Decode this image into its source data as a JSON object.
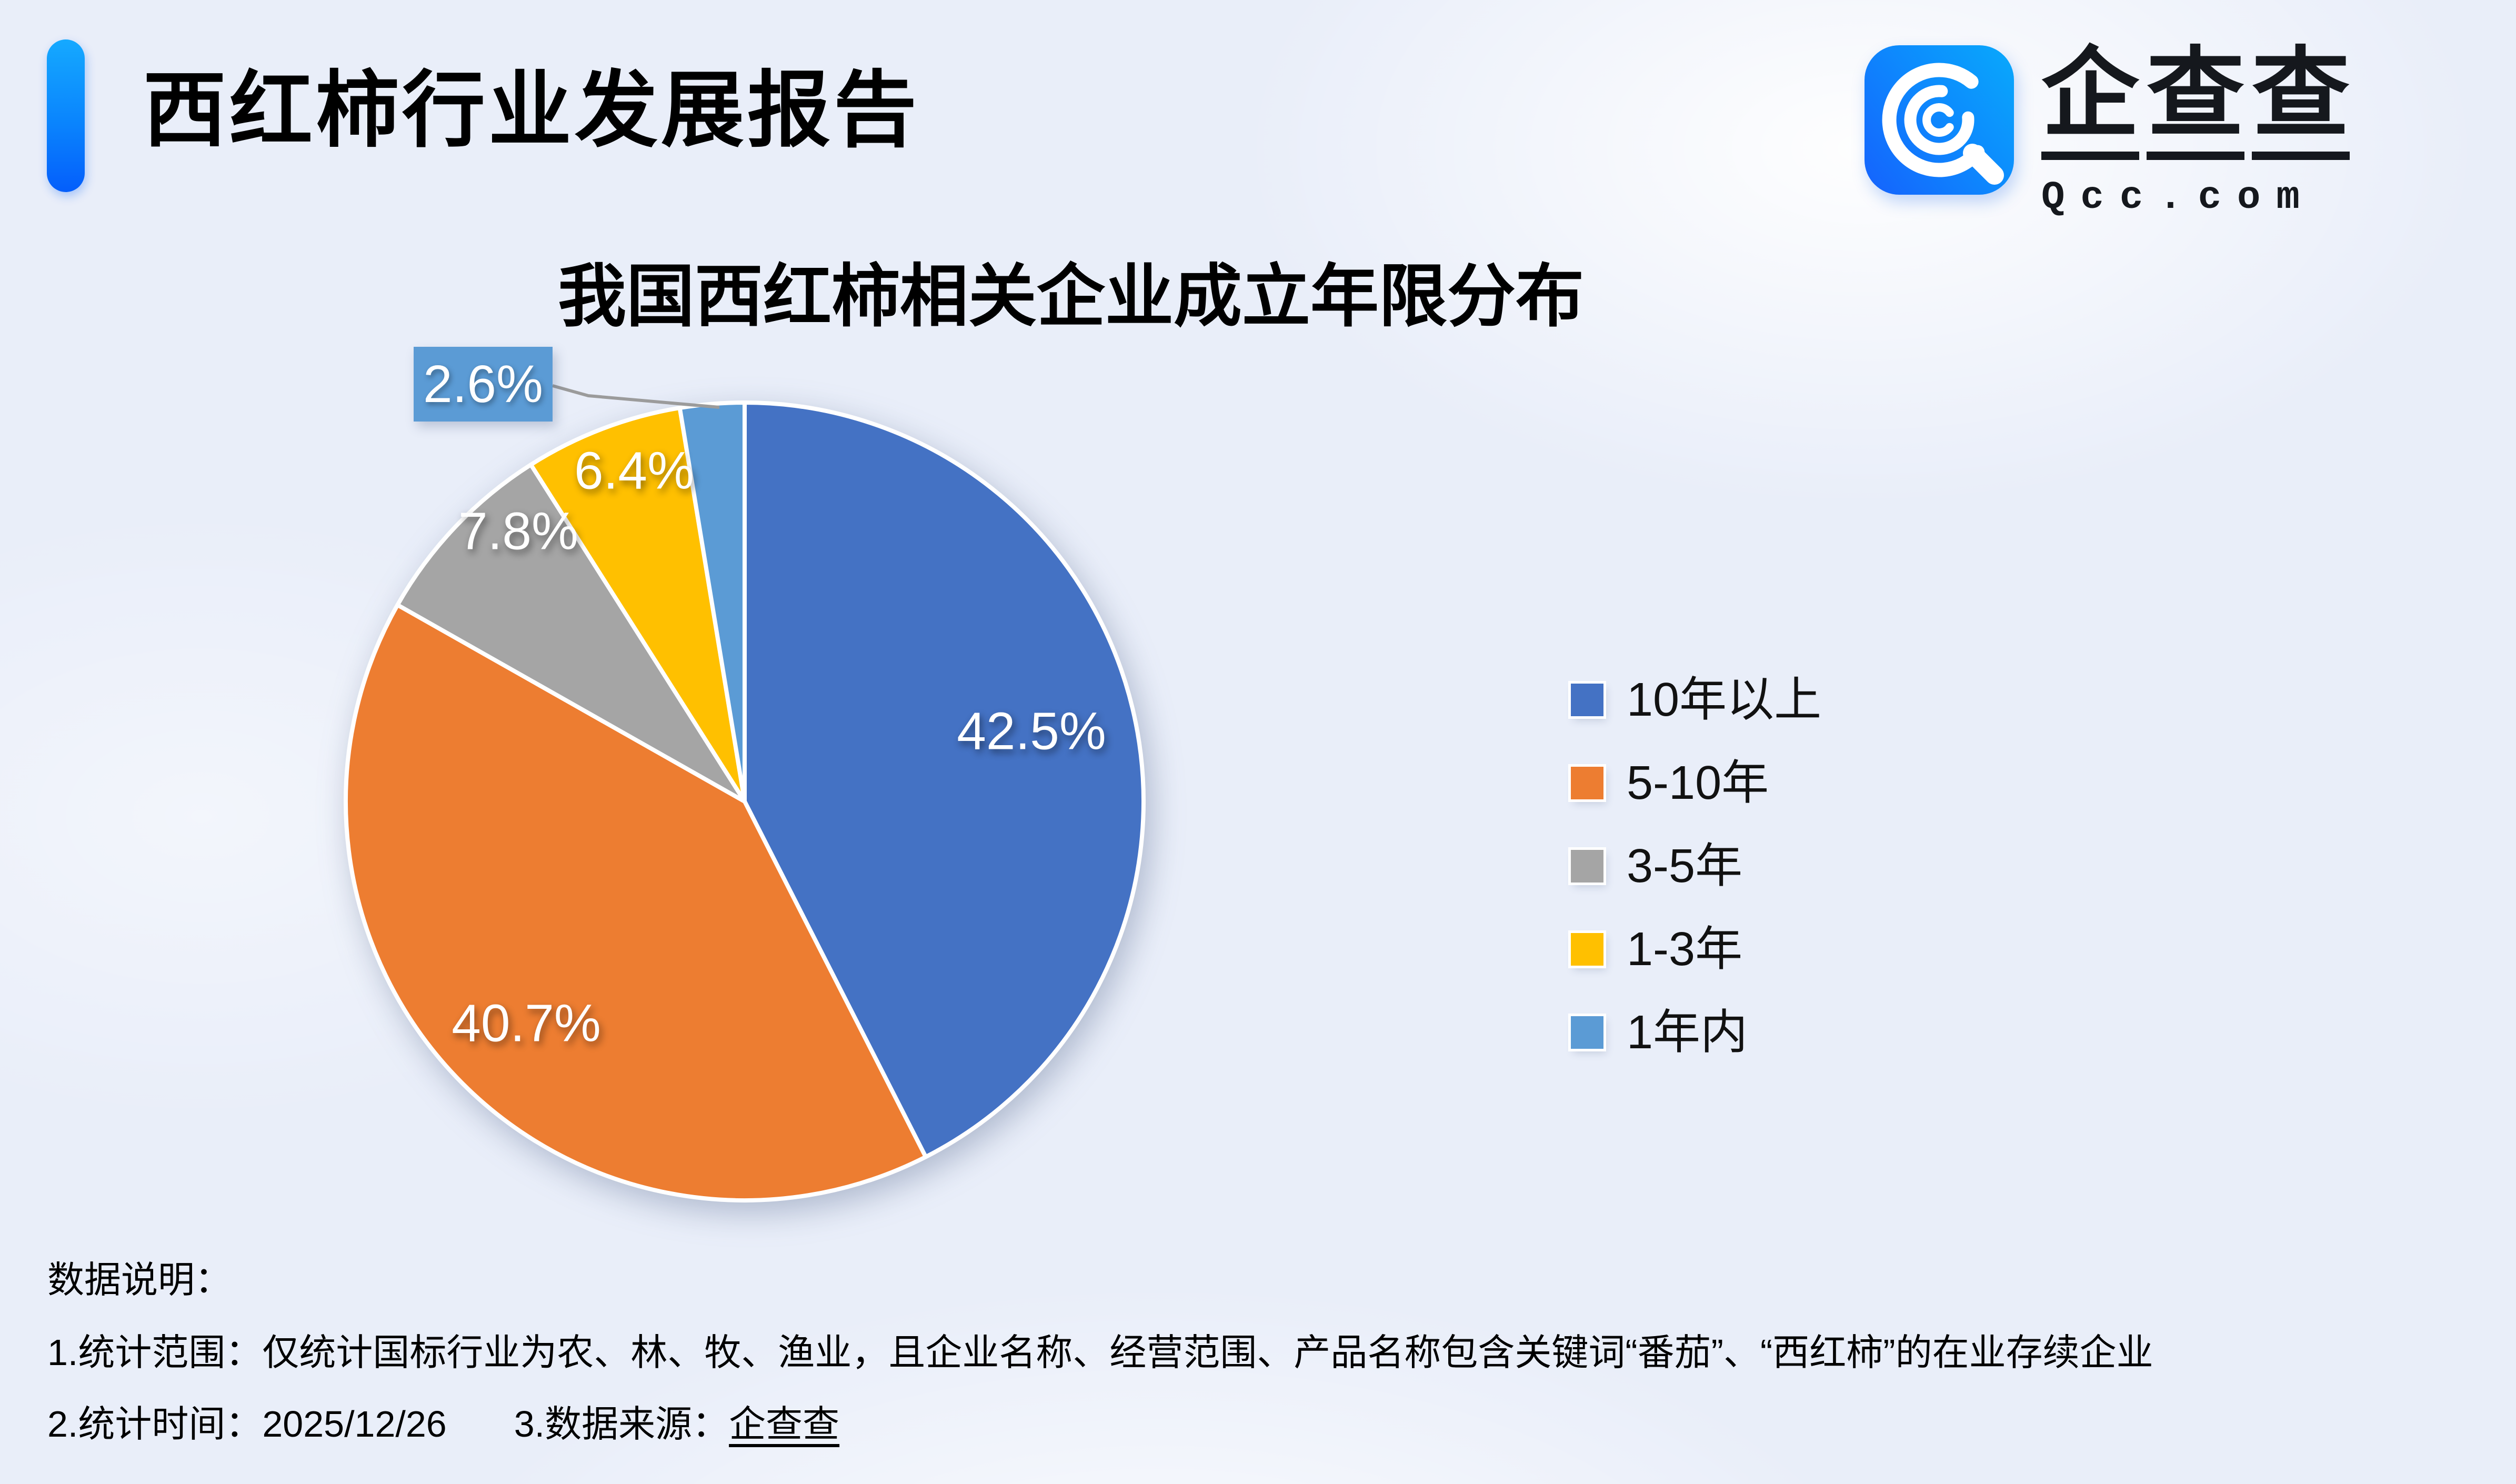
{
  "header": {
    "title": "西红柿行业发展报告"
  },
  "logo": {
    "icon": "qcc-logo-icon",
    "cn_chars": [
      "企",
      "查",
      "查"
    ],
    "en": "Qcc.com",
    "icon_colors": [
      "#1562fd",
      "#09a9fc"
    ]
  },
  "chart_data": {
    "type": "pie",
    "title": "我国西红柿相关企业成立年限分布",
    "unit": "percent",
    "start_angle_deg": 0,
    "direction": "clockwise",
    "legend_position": "right",
    "slices": [
      {
        "label": "10年以上",
        "value": 42.5,
        "display": "42.5%",
        "color": "#4472C4",
        "label_style": "inside"
      },
      {
        "label": "5-10年",
        "value": 40.7,
        "display": "40.7%",
        "color": "#ED7D31",
        "label_style": "inside"
      },
      {
        "label": "3-5年",
        "value": 7.8,
        "display": "7.8%",
        "color": "#A5A5A5",
        "label_style": "inside"
      },
      {
        "label": "1-3年",
        "value": 6.4,
        "display": "6.4%",
        "color": "#FFC000",
        "label_style": "inside"
      },
      {
        "label": "1年内",
        "value": 2.6,
        "display": "2.6%",
        "color": "#5B9BD5",
        "label_style": "callout-box"
      }
    ]
  },
  "footer": {
    "heading": "数据说明：",
    "line1": "1.统计范围：仅统计国标行业为农、林、牧、渔业，且企业名称、经营范围、产品名称包含关键词“番茄”、“西红柿”的在业存续企业",
    "line2_time": "2.统计时间：2025/12/26",
    "line2_source_prefix": "3.数据来源：",
    "line2_source_brand": "企查查"
  }
}
